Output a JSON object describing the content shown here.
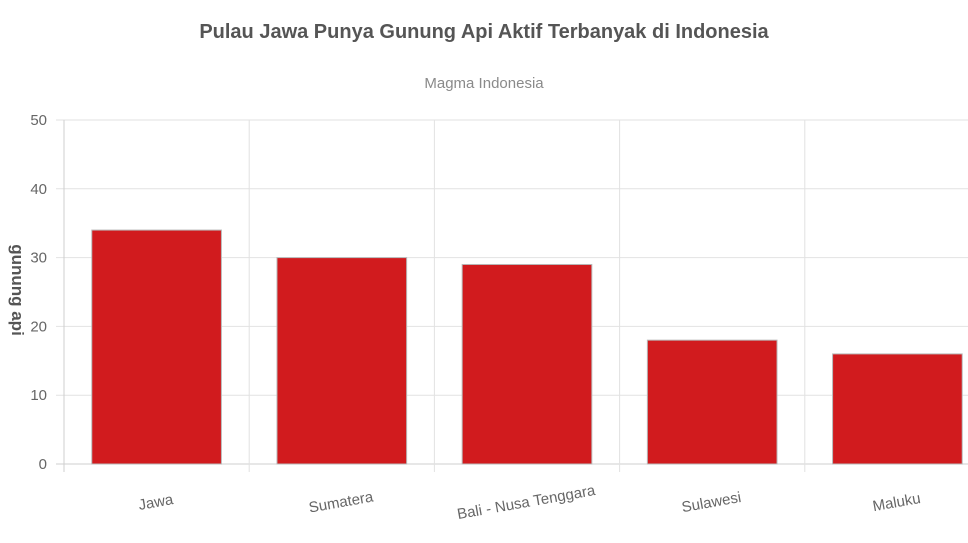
{
  "chart_data": {
    "type": "bar",
    "title": "Pulau Jawa Punya Gunung Api Aktif Terbanyak di Indonesia",
    "subtitle": "Magma Indonesia",
    "xlabel": "",
    "ylabel": "gunung api",
    "ylim": [
      0,
      50
    ],
    "yticks": [
      0,
      10,
      20,
      30,
      40,
      50
    ],
    "grid": true,
    "categories": [
      "Jawa",
      "Sumatera",
      "Bali - Nusa Tenggara",
      "Sulawesi",
      "Maluku"
    ],
    "values": [
      34,
      30,
      29,
      18,
      16
    ],
    "bar_color": "#d11b1e",
    "bar_border_color": "#b8b8b8"
  }
}
